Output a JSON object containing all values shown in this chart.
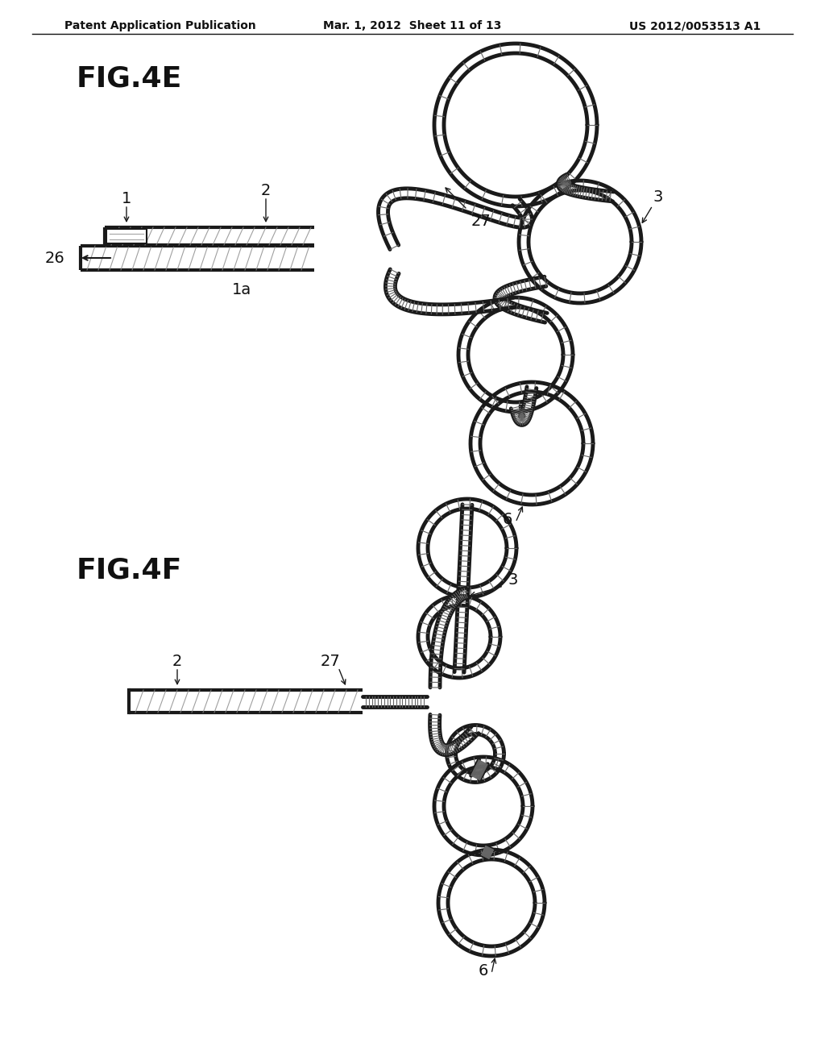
{
  "bg_color": "#ffffff",
  "header_left": "Patent Application Publication",
  "header_mid": "Mar. 1, 2012  Sheet 11 of 13",
  "header_right": "US 2012/0053513 A1",
  "fig4e_label": "FIG.4E",
  "fig4f_label": "FIG.4F",
  "labels": {
    "1": [
      1,
      2,
      27,
      26,
      "1a",
      3,
      6,
      27,
      2,
      3,
      6
    ]
  },
  "line_color": "#1a1a1a",
  "line_width": 2.0,
  "hatch_color": "#555555"
}
